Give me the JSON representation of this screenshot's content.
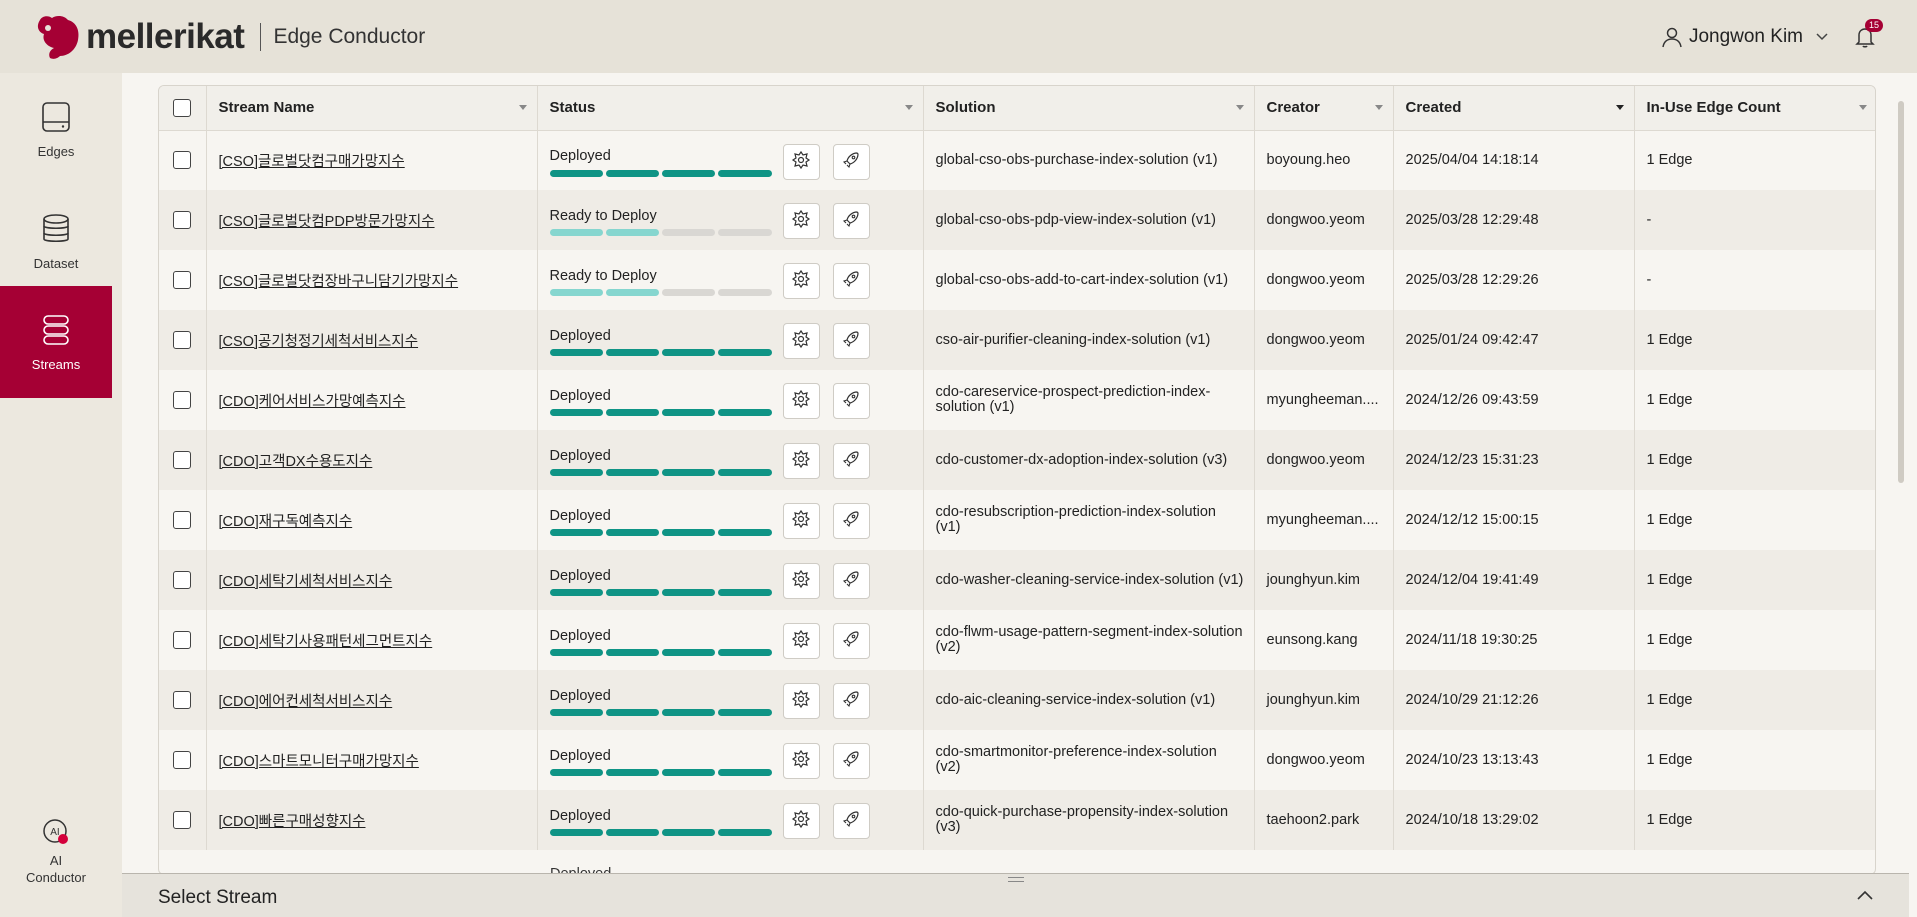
{
  "brand": {
    "logo_text": "mellerikat",
    "app_title": "Edge Conductor"
  },
  "user": {
    "name": "Jongwon Kim",
    "notification_count": "15"
  },
  "sidebar": {
    "items": [
      {
        "label": "Edges",
        "icon": "edge-device-icon"
      },
      {
        "label": "Dataset",
        "icon": "database-icon"
      },
      {
        "label": "Streams",
        "icon": "streams-icon",
        "active": true
      }
    ],
    "ai": {
      "label_line1": "AI",
      "label_line2": "Conductor",
      "icon": "ai-conductor-icon"
    }
  },
  "table": {
    "columns": [
      "Stream Name",
      "Status",
      "Solution",
      "Creator",
      "Created",
      "In-Use Edge Count"
    ],
    "rows": [
      {
        "name": "[CSO]글로벌닷컴구매가망지수",
        "status": "Deployed",
        "progress": 4,
        "solution": "global-cso-obs-purchase-index-solution (v1)",
        "creator": "boyoung.heo",
        "created": "2025/04/04 14:18:14",
        "edges": "1 Edge"
      },
      {
        "name": "[CSO]글로벌닷컴PDP방문가망지수",
        "status": "Ready to Deploy",
        "progress": 2,
        "solution": "global-cso-obs-pdp-view-index-solution (v1)",
        "creator": "dongwoo.yeom",
        "created": "2025/03/28 12:29:48",
        "edges": "-"
      },
      {
        "name": "[CSO]글로벌닷컴장바구니담기가망지수",
        "status": "Ready to Deploy",
        "progress": 2,
        "solution": "global-cso-obs-add-to-cart-index-solution (v1)",
        "creator": "dongwoo.yeom",
        "created": "2025/03/28 12:29:26",
        "edges": "-"
      },
      {
        "name": "[CSO]공기청정기세척서비스지수",
        "status": "Deployed",
        "progress": 4,
        "solution": "cso-air-purifier-cleaning-index-solution (v1)",
        "creator": "dongwoo.yeom",
        "created": "2025/01/24 09:42:47",
        "edges": "1 Edge"
      },
      {
        "name": "[CDO]케어서비스가망예측지수",
        "status": "Deployed",
        "progress": 4,
        "solution": "cdo-careservice-prospect-prediction-index-solution (v1)",
        "creator": "myungheeman....",
        "created": "2024/12/26 09:43:59",
        "edges": "1 Edge"
      },
      {
        "name": "[CDO]고객DX수용도지수",
        "status": "Deployed",
        "progress": 4,
        "solution": "cdo-customer-dx-adoption-index-solution (v3)",
        "creator": "dongwoo.yeom",
        "created": "2024/12/23 15:31:23",
        "edges": "1 Edge"
      },
      {
        "name": "[CDO]재구독예측지수",
        "status": "Deployed",
        "progress": 4,
        "solution": "cdo-resubscription-prediction-index-solution (v1)",
        "creator": "myungheeman....",
        "created": "2024/12/12 15:00:15",
        "edges": "1 Edge"
      },
      {
        "name": "[CDO]세탁기세척서비스지수",
        "status": "Deployed",
        "progress": 4,
        "solution": "cdo-washer-cleaning-service-index-solution (v1)",
        "creator": "jounghyun.kim",
        "created": "2024/12/04 19:41:49",
        "edges": "1 Edge"
      },
      {
        "name": "[CDO]세탁기사용패턴세그먼트지수",
        "status": "Deployed",
        "progress": 4,
        "solution": "cdo-flwm-usage-pattern-segment-index-solution (v2)",
        "creator": "eunsong.kang",
        "created": "2024/11/18 19:30:25",
        "edges": "1 Edge"
      },
      {
        "name": "[CDO]에어컨세척서비스지수",
        "status": "Deployed",
        "progress": 4,
        "solution": "cdo-aic-cleaning-service-index-solution (v1)",
        "creator": "jounghyun.kim",
        "created": "2024/10/29 21:12:26",
        "edges": "1 Edge"
      },
      {
        "name": "[CDO]스마트모니터구매가망지수",
        "status": "Deployed",
        "progress": 4,
        "solution": "cdo-smartmonitor-preference-index-solution (v2)",
        "creator": "dongwoo.yeom",
        "created": "2024/10/23 13:13:43",
        "edges": "1 Edge"
      },
      {
        "name": "[CDO]빠른구매성향지수",
        "status": "Deployed",
        "progress": 4,
        "solution": "cdo-quick-purchase-propensity-index-solution (v3)",
        "creator": "taehoon2.park",
        "created": "2024/10/18 13:29:02",
        "edges": "1 Edge"
      }
    ],
    "partial_status": "Deployed"
  },
  "bottom_panel": {
    "title": "Select Stream"
  },
  "colors": {
    "accent": "#a50034",
    "progress_on": "#0f9485",
    "progress_half": "#86d6cf",
    "progress_off": "#d9d7d3"
  }
}
